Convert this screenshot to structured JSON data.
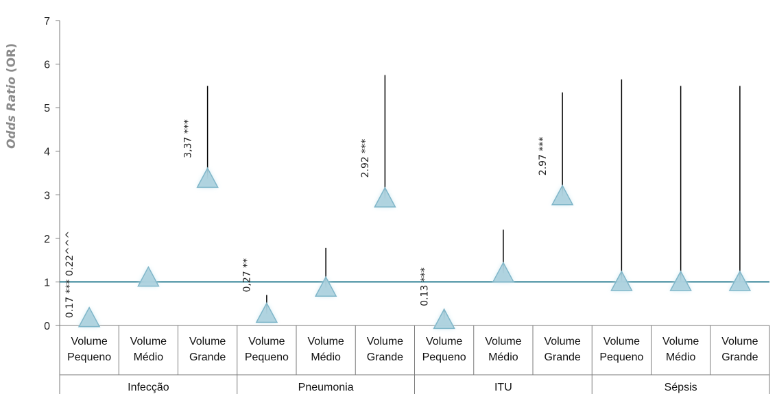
{
  "chart_data": {
    "type": "scatter",
    "title": "",
    "ylabel_italic": "Odds Ratio",
    "ylabel_suffix": " (OR)",
    "ylim": [
      0,
      7
    ],
    "yticks": [
      "0",
      "1",
      "2",
      "3",
      "4",
      "5",
      "6",
      "7"
    ],
    "reference_line": 1,
    "groups": [
      {
        "name": "Infecção",
        "categories": [
          {
            "top": "Volume",
            "bottom": "Pequeno",
            "value": 0.17,
            "upper": null,
            "label": "0.17 *** 0.22^^^"
          },
          {
            "top": "Volume",
            "bottom": "Médio",
            "value": 1.1,
            "upper": null,
            "label": ""
          },
          {
            "top": "Volume",
            "bottom": "Grande",
            "value": 3.37,
            "upper": 5.5,
            "label": "3,37 ***"
          }
        ]
      },
      {
        "name": "Pneumonia",
        "categories": [
          {
            "top": "Volume",
            "bottom": "Pequeno",
            "value": 0.27,
            "upper": 0.7,
            "label": "0,27 **"
          },
          {
            "top": "Volume",
            "bottom": "Médio",
            "value": 0.87,
            "upper": 1.78,
            "label": ""
          },
          {
            "top": "Volume",
            "bottom": "Grande",
            "value": 2.92,
            "upper": 5.75,
            "label": "2.92 ***"
          }
        ]
      },
      {
        "name": "ITU",
        "categories": [
          {
            "top": "Volume",
            "bottom": "Pequeno",
            "value": 0.13,
            "upper": 0.38,
            "label": "0.13 ***"
          },
          {
            "top": "Volume",
            "bottom": "Médio",
            "value": 1.2,
            "upper": 2.2,
            "label": ""
          },
          {
            "top": "Volume",
            "bottom": "Grande",
            "value": 2.97,
            "upper": 5.35,
            "label": "2.97 ***"
          }
        ]
      },
      {
        "name": "Sépsis",
        "categories": [
          {
            "top": "Volume",
            "bottom": "Pequeno",
            "value": 1.0,
            "upper": 5.65,
            "label": ""
          },
          {
            "top": "Volume",
            "bottom": "Médio",
            "value": 1.0,
            "upper": 5.5,
            "label": ""
          },
          {
            "top": "Volume",
            "bottom": "Grande",
            "value": 1.0,
            "upper": 5.5,
            "label": ""
          }
        ]
      }
    ],
    "colors": {
      "reference_line": "#2e7f94",
      "marker_fill": "#a9cfdc",
      "marker_stroke": "#7fb6c9",
      "marker_glow": "#c7e6f0",
      "error_bar": "#000000",
      "axis": "#7a7a7a"
    }
  }
}
